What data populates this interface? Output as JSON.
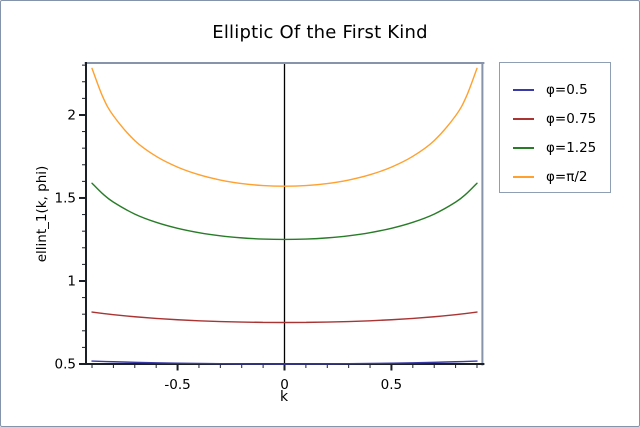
{
  "page": {
    "background": "#ffffff",
    "outer_border_color": "#8495ab"
  },
  "chart": {
    "title": "Elliptic Of the First Kind",
    "x_label": "k",
    "y_label": "ellint_1(k, phi)"
  },
  "axes": {
    "x_range": [
      -0.93,
      0.93
    ],
    "y_range": [
      0.5,
      2.319
    ],
    "x_ticks_major": [
      {
        "value": -0.5,
        "label": "-0.5"
      },
      {
        "value": 0,
        "label": "0"
      },
      {
        "value": 0.5,
        "label": "0.5"
      }
    ],
    "x_ticks_minor": [
      -0.9,
      -0.8,
      -0.7,
      -0.6,
      -0.4,
      -0.3,
      -0.2,
      -0.1,
      0.1,
      0.2,
      0.3,
      0.4,
      0.6,
      0.7,
      0.8,
      0.9
    ],
    "y_ticks_major": [
      {
        "value": 0.5,
        "label": "0.5"
      },
      {
        "value": 1,
        "label": "1"
      },
      {
        "value": 1.5,
        "label": "1.5"
      },
      {
        "value": 2,
        "label": "2"
      }
    ],
    "y_ticks_minor": [
      0.6,
      0.7,
      0.8,
      0.9,
      1.1,
      1.2,
      1.3,
      1.4,
      1.6,
      1.7,
      1.8,
      1.9,
      2.1,
      2.2,
      2.3
    ],
    "frame_color": "#8793a8",
    "axis_color": "#1b1f27",
    "zero_line_color": "#000000",
    "zero_line": true,
    "grid": false
  },
  "legend": {
    "border_color": "#909eb4",
    "position": "outside-top-right",
    "items": [
      {
        "label": "φ=0.5",
        "color": "#3a3aa6"
      },
      {
        "label": "φ=0.75",
        "color": "#a93434"
      },
      {
        "label": "φ=1.25",
        "color": "#287c28"
      },
      {
        "label": "φ=π/2",
        "color": "#ffa02f"
      }
    ]
  },
  "chart_data": {
    "type": "line",
    "title": "Elliptic Of the First Kind",
    "xlabel": "k",
    "ylabel": "ellint_1(k, phi)",
    "xlim": [
      -0.93,
      0.93
    ],
    "ylim": [
      0.5,
      2.32
    ],
    "grid": false,
    "zero_axis": true,
    "legend_position": "outside-top-right",
    "x": [
      -0.9,
      -0.85,
      -0.8,
      -0.7,
      -0.6,
      -0.5,
      -0.4,
      -0.3,
      -0.2,
      -0.1,
      0,
      0.1,
      0.2,
      0.3,
      0.4,
      0.5,
      0.6,
      0.7,
      0.8,
      0.85,
      0.9
    ],
    "series": [
      {
        "name": "φ=0.5",
        "color": "#3a3aa6",
        "values": [
          0.5176,
          0.5155,
          0.5135,
          0.5102,
          0.5074,
          0.5051,
          0.5032,
          0.5018,
          0.5008,
          0.5002,
          0.5,
          0.5002,
          0.5008,
          0.5018,
          0.5032,
          0.5051,
          0.5074,
          0.5102,
          0.5135,
          0.5155,
          0.5176
        ]
      },
      {
        "name": "φ=0.75",
        "color": "#a93434",
        "values": [
          0.8126,
          0.8044,
          0.797,
          0.7846,
          0.7746,
          0.7666,
          0.7604,
          0.7558,
          0.7525,
          0.7506,
          0.75,
          0.7506,
          0.7525,
          0.7558,
          0.7604,
          0.7666,
          0.7746,
          0.7846,
          0.797,
          0.8044,
          0.8126
        ]
      },
      {
        "name": "φ=1.25",
        "color": "#287c28",
        "values": [
          1.589,
          1.525,
          1.475,
          1.403,
          1.3534,
          1.3174,
          1.2911,
          1.2723,
          1.2597,
          1.2524,
          1.25,
          1.2524,
          1.2597,
          1.2723,
          1.2911,
          1.3174,
          1.3534,
          1.403,
          1.475,
          1.525,
          1.589
        ]
      },
      {
        "name": "φ=π/2",
        "color": "#ffa02f",
        "values": [
          2.2805,
          2.1099,
          1.9953,
          1.8457,
          1.7508,
          1.6858,
          1.64,
          1.608,
          1.5869,
          1.5747,
          1.5708,
          1.5747,
          1.5869,
          1.608,
          1.64,
          1.6858,
          1.7508,
          1.8457,
          1.9953,
          2.1099,
          2.2805
        ]
      }
    ]
  }
}
